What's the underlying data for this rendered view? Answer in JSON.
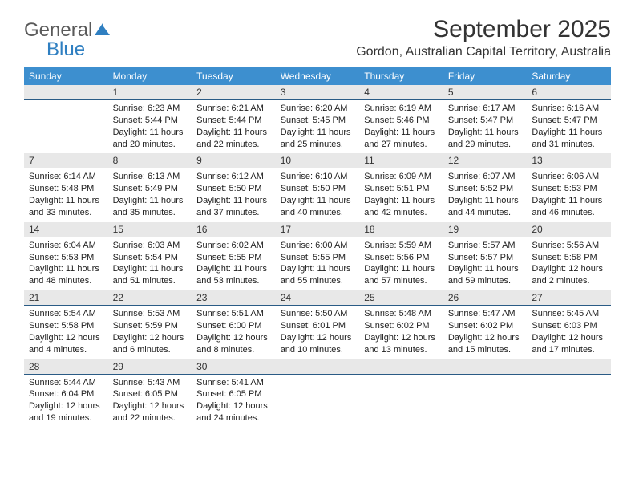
{
  "logo": {
    "word1": "General",
    "word2": "Blue"
  },
  "title": "September 2025",
  "location": "Gordon, Australian Capital Territory, Australia",
  "colors": {
    "header_bg": "#3d8fcf",
    "header_text": "#ffffff",
    "daybar_bg": "#e8e8e8",
    "daybar_border": "#2a5b85",
    "text": "#222222",
    "logo_gray": "#5a5a5a",
    "logo_blue": "#2f7fc1"
  },
  "day_headers": [
    "Sunday",
    "Monday",
    "Tuesday",
    "Wednesday",
    "Thursday",
    "Friday",
    "Saturday"
  ],
  "weeks": [
    [
      null,
      {
        "n": "1",
        "sr": "6:23 AM",
        "ss": "5:44 PM",
        "dl": "11 hours and 20 minutes."
      },
      {
        "n": "2",
        "sr": "6:21 AM",
        "ss": "5:44 PM",
        "dl": "11 hours and 22 minutes."
      },
      {
        "n": "3",
        "sr": "6:20 AM",
        "ss": "5:45 PM",
        "dl": "11 hours and 25 minutes."
      },
      {
        "n": "4",
        "sr": "6:19 AM",
        "ss": "5:46 PM",
        "dl": "11 hours and 27 minutes."
      },
      {
        "n": "5",
        "sr": "6:17 AM",
        "ss": "5:47 PM",
        "dl": "11 hours and 29 minutes."
      },
      {
        "n": "6",
        "sr": "6:16 AM",
        "ss": "5:47 PM",
        "dl": "11 hours and 31 minutes."
      }
    ],
    [
      {
        "n": "7",
        "sr": "6:14 AM",
        "ss": "5:48 PM",
        "dl": "11 hours and 33 minutes."
      },
      {
        "n": "8",
        "sr": "6:13 AM",
        "ss": "5:49 PM",
        "dl": "11 hours and 35 minutes."
      },
      {
        "n": "9",
        "sr": "6:12 AM",
        "ss": "5:50 PM",
        "dl": "11 hours and 37 minutes."
      },
      {
        "n": "10",
        "sr": "6:10 AM",
        "ss": "5:50 PM",
        "dl": "11 hours and 40 minutes."
      },
      {
        "n": "11",
        "sr": "6:09 AM",
        "ss": "5:51 PM",
        "dl": "11 hours and 42 minutes."
      },
      {
        "n": "12",
        "sr": "6:07 AM",
        "ss": "5:52 PM",
        "dl": "11 hours and 44 minutes."
      },
      {
        "n": "13",
        "sr": "6:06 AM",
        "ss": "5:53 PM",
        "dl": "11 hours and 46 minutes."
      }
    ],
    [
      {
        "n": "14",
        "sr": "6:04 AM",
        "ss": "5:53 PM",
        "dl": "11 hours and 48 minutes."
      },
      {
        "n": "15",
        "sr": "6:03 AM",
        "ss": "5:54 PM",
        "dl": "11 hours and 51 minutes."
      },
      {
        "n": "16",
        "sr": "6:02 AM",
        "ss": "5:55 PM",
        "dl": "11 hours and 53 minutes."
      },
      {
        "n": "17",
        "sr": "6:00 AM",
        "ss": "5:55 PM",
        "dl": "11 hours and 55 minutes."
      },
      {
        "n": "18",
        "sr": "5:59 AM",
        "ss": "5:56 PM",
        "dl": "11 hours and 57 minutes."
      },
      {
        "n": "19",
        "sr": "5:57 AM",
        "ss": "5:57 PM",
        "dl": "11 hours and 59 minutes."
      },
      {
        "n": "20",
        "sr": "5:56 AM",
        "ss": "5:58 PM",
        "dl": "12 hours and 2 minutes."
      }
    ],
    [
      {
        "n": "21",
        "sr": "5:54 AM",
        "ss": "5:58 PM",
        "dl": "12 hours and 4 minutes."
      },
      {
        "n": "22",
        "sr": "5:53 AM",
        "ss": "5:59 PM",
        "dl": "12 hours and 6 minutes."
      },
      {
        "n": "23",
        "sr": "5:51 AM",
        "ss": "6:00 PM",
        "dl": "12 hours and 8 minutes."
      },
      {
        "n": "24",
        "sr": "5:50 AM",
        "ss": "6:01 PM",
        "dl": "12 hours and 10 minutes."
      },
      {
        "n": "25",
        "sr": "5:48 AM",
        "ss": "6:02 PM",
        "dl": "12 hours and 13 minutes."
      },
      {
        "n": "26",
        "sr": "5:47 AM",
        "ss": "6:02 PM",
        "dl": "12 hours and 15 minutes."
      },
      {
        "n": "27",
        "sr": "5:45 AM",
        "ss": "6:03 PM",
        "dl": "12 hours and 17 minutes."
      }
    ],
    [
      {
        "n": "28",
        "sr": "5:44 AM",
        "ss": "6:04 PM",
        "dl": "12 hours and 19 minutes."
      },
      {
        "n": "29",
        "sr": "5:43 AM",
        "ss": "6:05 PM",
        "dl": "12 hours and 22 minutes."
      },
      {
        "n": "30",
        "sr": "5:41 AM",
        "ss": "6:05 PM",
        "dl": "12 hours and 24 minutes."
      },
      null,
      null,
      null,
      null
    ]
  ],
  "labels": {
    "sunrise": "Sunrise: ",
    "sunset": "Sunset: ",
    "daylight": "Daylight: "
  }
}
